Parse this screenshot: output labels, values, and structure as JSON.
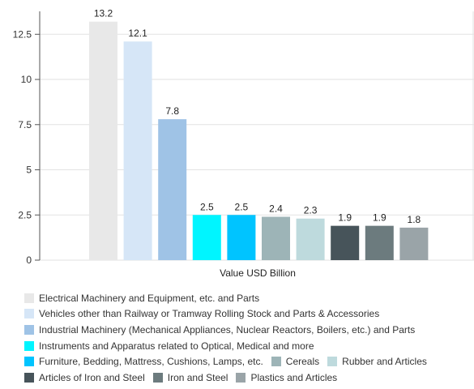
{
  "chart_data": {
    "type": "bar",
    "xlabel": "Value USD Billion",
    "ylabel": "",
    "ylim": [
      0,
      13.5
    ],
    "yticks": [
      0,
      2.5,
      5,
      7.5,
      10,
      12.5
    ],
    "ytick_labels": [
      "0",
      "2.5",
      "5",
      "7.5",
      "10",
      "12.5"
    ],
    "grid": "horizontal",
    "legend_position": "bottom",
    "series": [
      {
        "name": "Electrical Machinery and Equipment, etc. and Parts",
        "value": 13.2,
        "label": "13.2",
        "color": "#e8e8e8"
      },
      {
        "name": "Vehicles other than Railway or Tramway Rolling Stock and Parts & Accessories",
        "value": 12.1,
        "label": "12.1",
        "color": "#d6e6f7"
      },
      {
        "name": "Industrial Machinery (Mechanical Appliances, Nuclear Reactors, Boilers, etc.) and Parts",
        "value": 7.8,
        "label": "7.8",
        "color": "#9fc3e6"
      },
      {
        "name": "Instruments and Apparatus related to Optical, Medical and more",
        "value": 2.5,
        "label": "2.5",
        "color": "#00f5ff"
      },
      {
        "name": "Furniture, Bedding, Mattress, Cushions, Lamps, etc.",
        "value": 2.5,
        "label": "2.5",
        "color": "#00c4ff"
      },
      {
        "name": "Cereals",
        "value": 2.4,
        "label": "2.4",
        "color": "#9db4b7"
      },
      {
        "name": "Rubber and Articles",
        "value": 2.3,
        "label": "2.3",
        "color": "#bedadd"
      },
      {
        "name": "Articles of Iron and Steel",
        "value": 1.9,
        "label": "1.9",
        "color": "#47545a"
      },
      {
        "name": "Iron and Steel",
        "value": 1.9,
        "label": "1.9",
        "color": "#6c7b7e"
      },
      {
        "name": "Plastics and Articles",
        "value": 1.8,
        "label": "1.8",
        "color": "#9aa4a8"
      }
    ]
  }
}
